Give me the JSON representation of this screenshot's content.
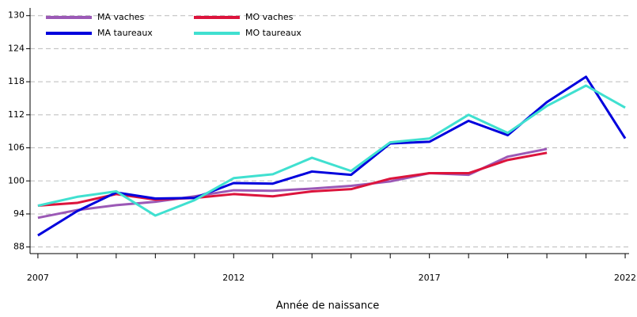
{
  "chart_data": {
    "type": "line",
    "x_label": "Année de naissance",
    "x": [
      2007,
      2008,
      2009,
      2010,
      2011,
      2012,
      2013,
      2014,
      2015,
      2016,
      2017,
      2018,
      2019,
      2020,
      2021,
      2022
    ],
    "series": [
      {
        "name": "MA vaches",
        "color": "#9b59b6",
        "values": [
          93.3,
          94.7,
          95.6,
          96.2,
          97.2,
          98.3,
          98.2,
          98.6,
          99.1,
          99.9,
          101.4,
          101.1,
          104.4,
          105.8,
          null,
          null
        ]
      },
      {
        "name": "MO vaches",
        "color": "#dc143c",
        "values": [
          95.5,
          96.0,
          97.6,
          96.6,
          96.9,
          97.6,
          97.2,
          98.1,
          98.5,
          100.4,
          101.4,
          101.4,
          103.8,
          105.1,
          null,
          null
        ]
      },
      {
        "name": "MA taureaux",
        "color": "#0000dd",
        "values": [
          90.1,
          94.5,
          97.9,
          96.8,
          96.9,
          99.6,
          99.5,
          101.7,
          101.1,
          106.8,
          107.1,
          110.9,
          108.3,
          114.3,
          118.9,
          107.7
        ]
      },
      {
        "name": "MO taureaux",
        "color": "#40e0d0",
        "values": [
          95.5,
          97.1,
          98.1,
          93.7,
          96.5,
          100.5,
          101.2,
          104.2,
          101.8,
          107.0,
          107.7,
          112.0,
          108.7,
          113.6,
          117.3,
          113.3
        ]
      }
    ],
    "xlim": [
      2006.8,
      2022.1
    ],
    "xticks": [
      2007,
      2012,
      2017,
      2022
    ],
    "xminor_ticks": [
      2008,
      2009,
      2010,
      2011,
      2013,
      2014,
      2015,
      2016,
      2018,
      2019,
      2020,
      2021
    ],
    "ylim": [
      86.8,
      131.4
    ],
    "yticks": [
      88,
      94,
      100,
      106,
      112,
      118,
      124,
      130
    ],
    "grid": true,
    "legend": "top-left"
  }
}
